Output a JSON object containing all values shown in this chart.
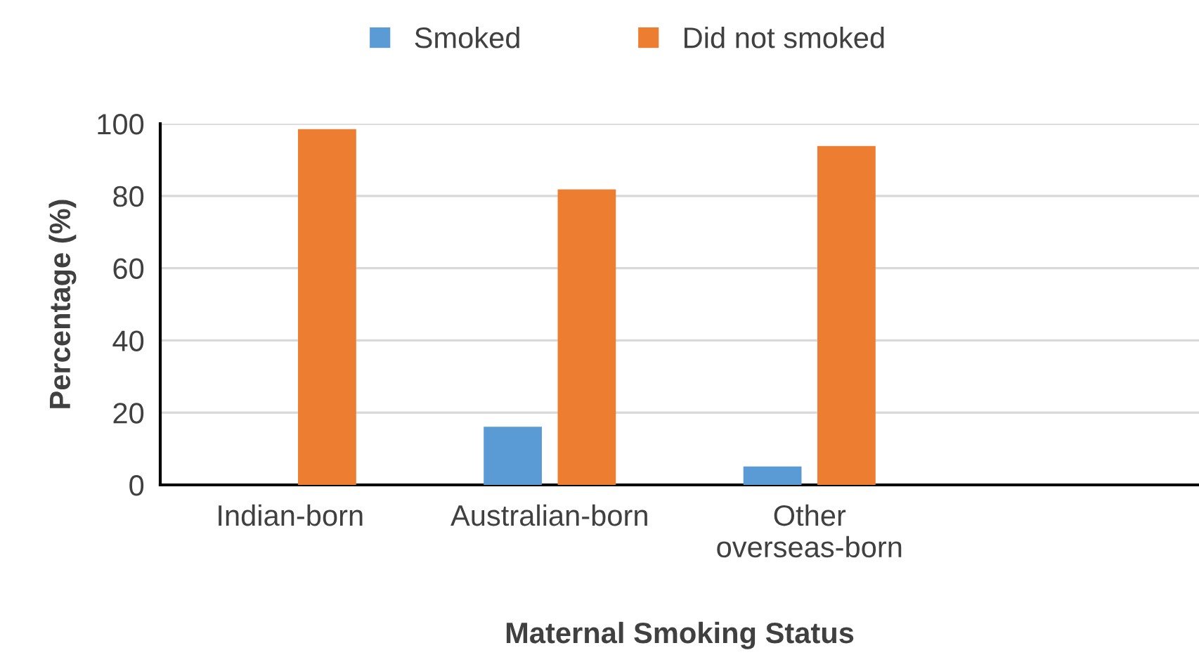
{
  "chart_data": {
    "type": "bar",
    "xlabel": "Maternal Smoking Status",
    "ylabel": "Percentage (%)",
    "categories": [
      "Indian-born",
      "Australian-born",
      "Other\noverseas-born",
      null
    ],
    "series": [
      {
        "name": "Smoked",
        "color": "#5b9bd5",
        "values": [
          0,
          16.1,
          5.1,
          null
        ]
      },
      {
        "name": "Did not smoked",
        "color": "#ed7d31",
        "values": [
          98.5,
          81.8,
          93.8,
          null
        ]
      }
    ],
    "ylim": [
      0,
      100
    ],
    "yticks": [
      0,
      20,
      40,
      60,
      80,
      100
    ],
    "grid": "y",
    "legend": "top"
  }
}
